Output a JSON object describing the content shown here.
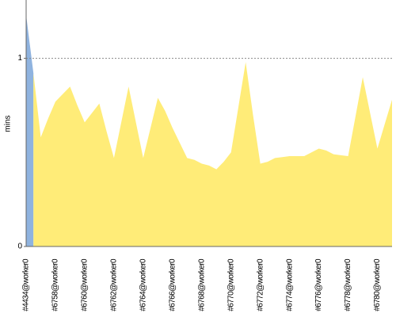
{
  "chart_data": {
    "type": "area",
    "y_label": "mins",
    "categories": [
      "#4434@worker0",
      null,
      null,
      null,
      "#6758@worker0",
      null,
      null,
      null,
      "#6760@worker0",
      null,
      null,
      null,
      "#6762@worker0",
      null,
      null,
      null,
      "#6764@worker0",
      null,
      null,
      null,
      "#6766@worker0",
      null,
      null,
      null,
      "#6768@worker0",
      null,
      null,
      null,
      "#6770@worker0",
      null,
      null,
      null,
      "#6772@worker0",
      null,
      null,
      null,
      "#6774@worker0",
      null,
      null,
      null,
      "#6776@worker0",
      null,
      null,
      null,
      "#6778@worker0",
      null,
      null,
      null,
      "#6780@worker0",
      null,
      null
    ],
    "series": [
      {
        "color": "#8fb3df",
        "values": [
          1.23,
          0.92,
          null,
          null,
          null,
          null,
          null,
          null,
          null,
          null,
          null,
          null,
          null,
          null,
          null,
          null,
          null,
          null,
          null,
          null,
          null,
          null,
          null,
          null,
          null,
          null,
          null,
          null,
          null,
          null,
          null,
          null,
          null,
          null,
          null,
          null,
          null,
          null,
          null,
          null,
          null,
          null,
          null,
          null,
          null,
          null,
          null,
          null,
          null,
          null,
          null
        ]
      },
      {
        "color": "#ffec78",
        "values": [
          null,
          0.92,
          0.58,
          0.68,
          0.77,
          0.81,
          0.85,
          0.75,
          0.66,
          0.71,
          0.76,
          0.61,
          0.47,
          0.66,
          0.85,
          0.66,
          0.47,
          0.63,
          0.79,
          0.72,
          0.63,
          0.55,
          0.47,
          0.46,
          0.44,
          0.43,
          0.41,
          0.45,
          0.5,
          0.74,
          0.98,
          0.7,
          0.44,
          0.45,
          0.47,
          0.475,
          0.48,
          0.48,
          0.48,
          0.5,
          0.52,
          0.51,
          0.49,
          0.485,
          0.48,
          0.69,
          0.9,
          0.71,
          0.52,
          0.65,
          0.78
        ]
      }
    ],
    "ylim": [
      0,
      1.31
    ],
    "yticks": [
      0,
      1
    ],
    "grid": true
  }
}
